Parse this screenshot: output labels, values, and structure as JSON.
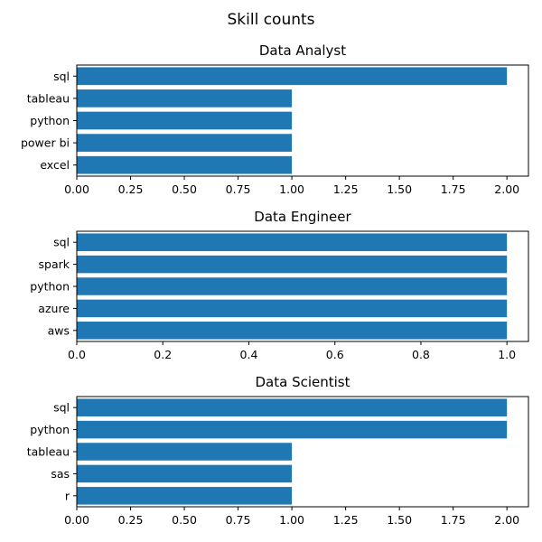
{
  "figure": {
    "title": "Skill counts",
    "bar_color": "#1f77b4"
  },
  "chart_data": [
    {
      "type": "bar",
      "orientation": "horizontal",
      "title": "Data Analyst",
      "categories": [
        "sql",
        "tableau",
        "python",
        "power bi",
        "excel"
      ],
      "values": [
        2,
        1,
        1,
        1,
        1
      ],
      "xlim": [
        0,
        2.1
      ],
      "xticks": [
        0,
        0.25,
        0.5,
        0.75,
        1.0,
        1.25,
        1.5,
        1.75,
        2.0
      ],
      "xtick_labels": [
        "0.00",
        "0.25",
        "0.50",
        "0.75",
        "1.00",
        "1.25",
        "1.50",
        "1.75",
        "2.00"
      ],
      "grid": false
    },
    {
      "type": "bar",
      "orientation": "horizontal",
      "title": "Data Engineer",
      "categories": [
        "sql",
        "spark",
        "python",
        "azure",
        "aws"
      ],
      "values": [
        1,
        1,
        1,
        1,
        1
      ],
      "xlim": [
        0,
        1.05
      ],
      "xticks": [
        0,
        0.2,
        0.4,
        0.6,
        0.8,
        1.0
      ],
      "xtick_labels": [
        "0.0",
        "0.2",
        "0.4",
        "0.6",
        "0.8",
        "1.0"
      ],
      "grid": false
    },
    {
      "type": "bar",
      "orientation": "horizontal",
      "title": "Data Scientist",
      "categories": [
        "sql",
        "python",
        "tableau",
        "sas",
        "r"
      ],
      "values": [
        2,
        2,
        1,
        1,
        1
      ],
      "xlim": [
        0,
        2.1
      ],
      "xticks": [
        0,
        0.25,
        0.5,
        0.75,
        1.0,
        1.25,
        1.5,
        1.75,
        2.0
      ],
      "xtick_labels": [
        "0.00",
        "0.25",
        "0.50",
        "0.75",
        "1.00",
        "1.25",
        "1.50",
        "1.75",
        "2.00"
      ],
      "grid": false
    }
  ]
}
